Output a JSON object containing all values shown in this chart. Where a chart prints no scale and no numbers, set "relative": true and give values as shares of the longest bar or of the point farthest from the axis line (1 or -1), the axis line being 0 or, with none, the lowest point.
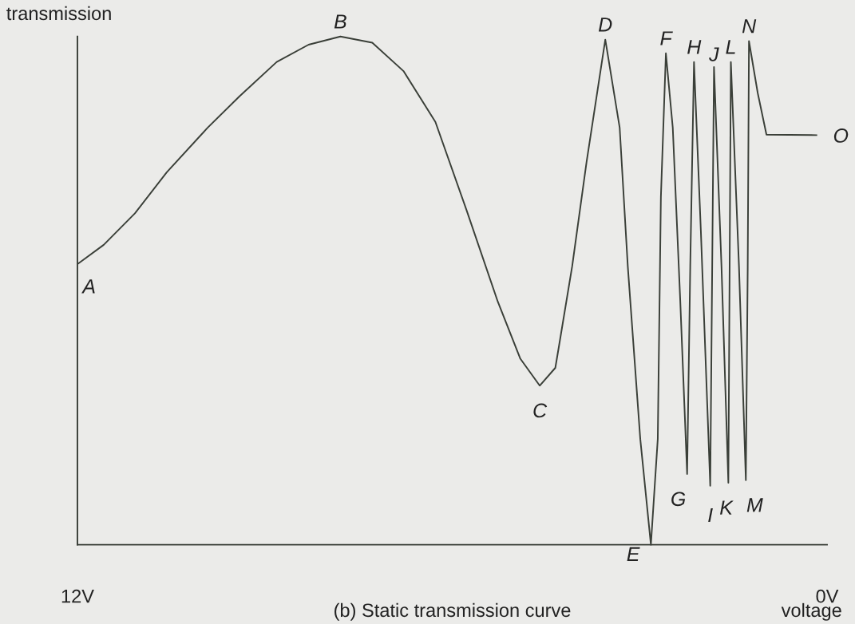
{
  "chart_data": {
    "type": "line",
    "relative": true,
    "title": "(b) Static transmission curve",
    "xlabel": "voltage",
    "ylabel": "transmission",
    "xlim": [
      12,
      0
    ],
    "xticks": [
      {
        "value": 12,
        "label": "12V"
      },
      {
        "value": 0,
        "label": "0V"
      }
    ],
    "tick_labels": "x",
    "grid": false,
    "marker": "none",
    "line_style": "solid",
    "series": [
      {
        "color": "#3a3f38",
        "x": [
          11.99,
          11.58,
          11.08,
          10.57,
          9.92,
          9.41,
          8.81,
          8.3,
          7.79,
          7.28,
          6.78,
          6.27,
          5.77,
          5.27,
          4.91,
          4.6,
          4.35,
          4.29,
          4.08,
          3.85,
          3.55,
          3.32,
          3.19,
          2.99,
          2.82,
          2.71,
          2.66,
          2.58,
          2.47,
          2.35,
          2.24,
          2.19,
          2.13,
          2.02,
          1.87,
          1.81,
          1.69,
          1.58,
          1.54,
          1.41,
          1.3,
          1.27,
          1.25,
          1.11,
          0.97,
          0.17
        ],
        "values": [
          0.553,
          0.59,
          0.652,
          0.733,
          0.82,
          0.882,
          0.95,
          0.984,
          1.0,
          0.988,
          0.932,
          0.832,
          0.658,
          0.478,
          0.366,
          0.313,
          0.348,
          0.392,
          0.548,
          0.753,
          0.994,
          0.821,
          0.548,
          0.208,
          0.0,
          0.208,
          0.684,
          0.967,
          0.821,
          0.48,
          0.139,
          0.548,
          0.95,
          0.617,
          0.116,
          0.94,
          0.548,
          0.122,
          0.95,
          0.548,
          0.127,
          0.548,
          0.991,
          0.889,
          0.807,
          0.806
        ]
      }
    ],
    "annotations": [
      {
        "text": "A",
        "x": 11.99,
        "y": 0.553
      },
      {
        "text": "B",
        "x": 7.79,
        "y": 1.0
      },
      {
        "text": "C",
        "x": 4.6,
        "y": 0.313
      },
      {
        "text": "D",
        "x": 3.55,
        "y": 0.994
      },
      {
        "text": "E",
        "x": 2.82,
        "y": 0.0
      },
      {
        "text": "F",
        "x": 2.58,
        "y": 0.967
      },
      {
        "text": "G",
        "x": 2.24,
        "y": 0.139
      },
      {
        "text": "H",
        "x": 2.13,
        "y": 0.95
      },
      {
        "text": "I",
        "x": 1.87,
        "y": 0.116
      },
      {
        "text": "J",
        "x": 1.81,
        "y": 0.94
      },
      {
        "text": "K",
        "x": 1.58,
        "y": 0.122
      },
      {
        "text": "L",
        "x": 1.54,
        "y": 0.95
      },
      {
        "text": "M",
        "x": 1.3,
        "y": 0.127
      },
      {
        "text": "N",
        "x": 1.25,
        "y": 0.991
      },
      {
        "text": "O",
        "x": 0.17,
        "y": 0.806
      }
    ]
  }
}
